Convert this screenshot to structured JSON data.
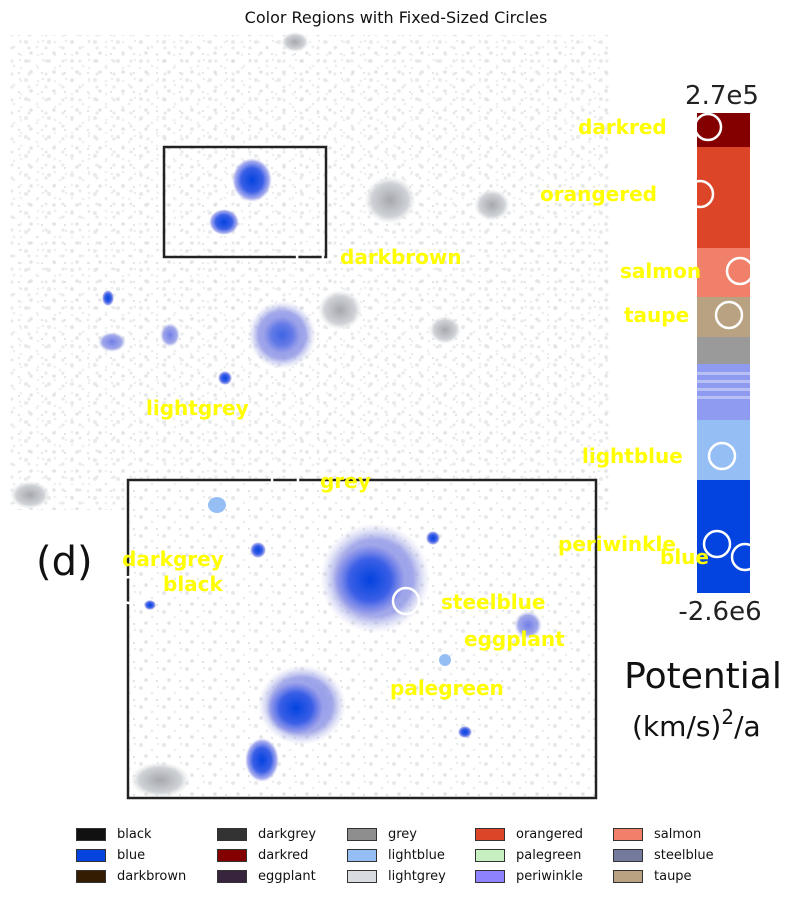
{
  "title": "Color Regions with Fixed-Sized Circles",
  "panel_tag": "(d)",
  "colorbar": {
    "max_label": "2.7e5",
    "min_label": "-2.6e6",
    "title": "Potential",
    "unit": "(km/s)",
    "unit_exp": "2",
    "unit_suffix": "/a"
  },
  "region_labels": [
    {
      "text": "darkred"
    },
    {
      "text": "orangered"
    },
    {
      "text": "darkbrown"
    },
    {
      "text": "salmon"
    },
    {
      "text": "taupe"
    },
    {
      "text": "lightgrey"
    },
    {
      "text": "lightblue"
    },
    {
      "text": "grey"
    },
    {
      "text": "periwinkle"
    },
    {
      "text": "blue"
    },
    {
      "text": "darkgrey"
    },
    {
      "text": "black"
    },
    {
      "text": "steelblue"
    },
    {
      "text": "eggplant"
    },
    {
      "text": "palegreen"
    }
  ],
  "legend": [
    {
      "label": "black",
      "color": "#111111"
    },
    {
      "label": "darkgrey",
      "color": "#333333"
    },
    {
      "label": "grey",
      "color": "#8e8e8e"
    },
    {
      "label": "orangered",
      "color": "#dd4528"
    },
    {
      "label": "salmon",
      "color": "#f0806a"
    },
    {
      "label": "blue",
      "color": "#0343df"
    },
    {
      "label": "darkred",
      "color": "#840000"
    },
    {
      "label": "lightblue",
      "color": "#95bef5"
    },
    {
      "label": "palegreen",
      "color": "#c7f0c0"
    },
    {
      "label": "steelblue",
      "color": "#737a9c"
    },
    {
      "label": "darkbrown",
      "color": "#341c02"
    },
    {
      "label": "eggplant",
      "color": "#38243d"
    },
    {
      "label": "lightgrey",
      "color": "#d8dce0"
    },
    {
      "label": "periwinkle",
      "color": "#8e82fe"
    },
    {
      "label": "taupe",
      "color": "#b9a281"
    }
  ],
  "colorbar_segments": [
    {
      "name": "darkred",
      "color": "#840000"
    },
    {
      "name": "orangered",
      "color": "#dd4528"
    },
    {
      "name": "salmon",
      "color": "#f0806a"
    },
    {
      "name": "taupe",
      "color": "#b9a281"
    },
    {
      "name": "grey",
      "color": "#9a9a9a"
    },
    {
      "name": "periwinkle",
      "color": "#8e9bf0"
    },
    {
      "name": "lightblue",
      "color": "#95bef5"
    },
    {
      "name": "blue",
      "color": "#0343df"
    }
  ]
}
